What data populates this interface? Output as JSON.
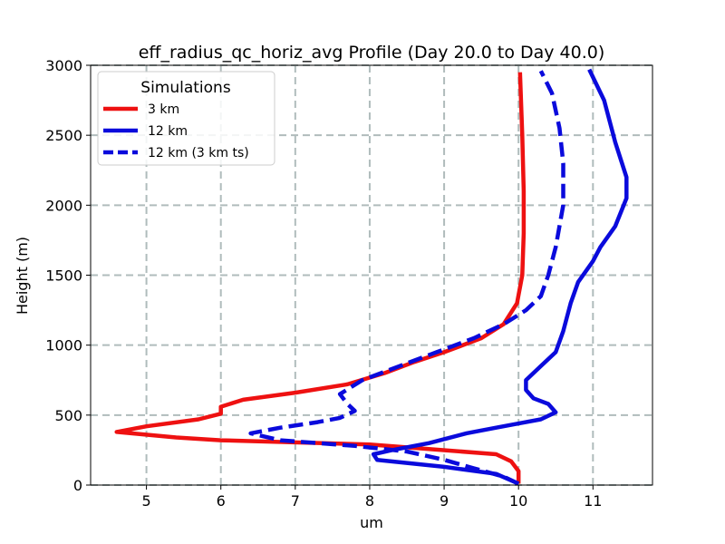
{
  "chart_data": {
    "type": "line",
    "title": "eff_radius_qc_horiz_avg Profile (Day 20.0 to Day 40.0)",
    "xlabel": "um",
    "ylabel": "Height (m)",
    "xlim": [
      4.25,
      11.8
    ],
    "ylim": [
      0,
      3000
    ],
    "xticks": [
      5,
      6,
      7,
      8,
      9,
      10,
      11
    ],
    "yticks": [
      0,
      500,
      1000,
      1500,
      2000,
      2500,
      3000
    ],
    "grid": true,
    "legend": {
      "title": "Simulations",
      "placement": "top-left",
      "entries": [
        "3 km",
        "12 km",
        "12 km (3 km ts)"
      ]
    },
    "series": [
      {
        "name": "3 km",
        "color": "#ee1111",
        "dash": "solid",
        "points": [
          [
            10.0,
            10
          ],
          [
            10.0,
            100
          ],
          [
            9.9,
            170
          ],
          [
            9.7,
            220
          ],
          [
            8.0,
            290
          ],
          [
            6.0,
            320
          ],
          [
            5.4,
            340
          ],
          [
            4.6,
            380
          ],
          [
            5.0,
            420
          ],
          [
            5.7,
            470
          ],
          [
            6.0,
            510
          ],
          [
            6.0,
            560
          ],
          [
            6.3,
            610
          ],
          [
            7.0,
            660
          ],
          [
            7.7,
            720
          ],
          [
            8.2,
            800
          ],
          [
            8.6,
            880
          ],
          [
            9.0,
            950
          ],
          [
            9.5,
            1050
          ],
          [
            9.8,
            1150
          ],
          [
            9.98,
            1300
          ],
          [
            10.05,
            1500
          ],
          [
            10.07,
            1800
          ],
          [
            10.07,
            2100
          ],
          [
            10.05,
            2500
          ],
          [
            10.02,
            2950
          ]
        ]
      },
      {
        "name": "12 km",
        "color": "#0a0adc",
        "dash": "solid",
        "points": [
          [
            10.0,
            10
          ],
          [
            9.7,
            80
          ],
          [
            9.0,
            130
          ],
          [
            8.1,
            180
          ],
          [
            8.05,
            220
          ],
          [
            8.3,
            250
          ],
          [
            8.8,
            300
          ],
          [
            9.3,
            370
          ],
          [
            9.7,
            410
          ],
          [
            10.0,
            440
          ],
          [
            10.3,
            470
          ],
          [
            10.5,
            520
          ],
          [
            10.4,
            580
          ],
          [
            10.2,
            620
          ],
          [
            10.1,
            680
          ],
          [
            10.1,
            750
          ],
          [
            10.3,
            850
          ],
          [
            10.5,
            950
          ],
          [
            10.6,
            1100
          ],
          [
            10.7,
            1300
          ],
          [
            10.8,
            1450
          ],
          [
            11.0,
            1600
          ],
          [
            11.1,
            1700
          ],
          [
            11.3,
            1850
          ],
          [
            11.45,
            2050
          ],
          [
            11.45,
            2200
          ],
          [
            11.3,
            2450
          ],
          [
            11.15,
            2750
          ],
          [
            10.95,
            2970
          ]
        ]
      },
      {
        "name": "12 km (3 km ts)",
        "color": "#0a0adc",
        "dash": "dashed",
        "points": [
          [
            10.0,
            10
          ],
          [
            9.8,
            60
          ],
          [
            9.4,
            120
          ],
          [
            9.0,
            180
          ],
          [
            8.5,
            240
          ],
          [
            7.8,
            280
          ],
          [
            6.8,
            320
          ],
          [
            6.4,
            370
          ],
          [
            6.8,
            410
          ],
          [
            7.3,
            450
          ],
          [
            7.6,
            480
          ],
          [
            7.8,
            530
          ],
          [
            7.7,
            580
          ],
          [
            7.6,
            650
          ],
          [
            7.9,
            750
          ],
          [
            8.4,
            850
          ],
          [
            8.9,
            950
          ],
          [
            9.4,
            1050
          ],
          [
            9.8,
            1150
          ],
          [
            10.1,
            1250
          ],
          [
            10.3,
            1350
          ],
          [
            10.4,
            1500
          ],
          [
            10.5,
            1700
          ],
          [
            10.6,
            2000
          ],
          [
            10.6,
            2300
          ],
          [
            10.55,
            2550
          ],
          [
            10.45,
            2800
          ],
          [
            10.3,
            2960
          ]
        ]
      }
    ]
  }
}
